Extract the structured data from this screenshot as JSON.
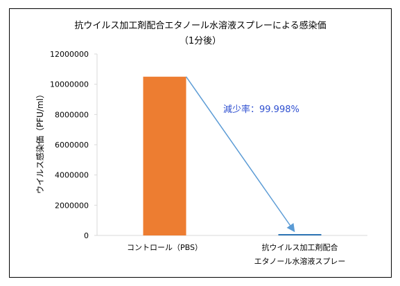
{
  "chart_data": {
    "type": "bar",
    "title": "抗ウイルス加工剤配合エタノール水溶液スプレーによる感染価",
    "subtitle": "（1分後）",
    "ylabel": "ウイルス感染価（PFU/ml）",
    "xlabel": "",
    "categories": [
      [
        "コントロール（PBS）"
      ],
      [
        "抗ウイルス加工剤配合",
        "エタノール水溶液スプレー"
      ]
    ],
    "values": [
      10500000,
      100
    ],
    "bar_colors": [
      "#ED7D31",
      "#2E75B6"
    ],
    "ylim": [
      0,
      12000000
    ],
    "yticks": [
      0,
      2000000,
      4000000,
      6000000,
      8000000,
      10000000,
      12000000
    ],
    "ytick_labels": [
      "0",
      "2000000",
      "4000000",
      "6000000",
      "8000000",
      "10000000",
      "12000000"
    ],
    "grid": false,
    "annotation": {
      "text": "減少率：99.998%",
      "color": "#2E4FD0",
      "arrow_color": "#5B9BD5"
    }
  }
}
